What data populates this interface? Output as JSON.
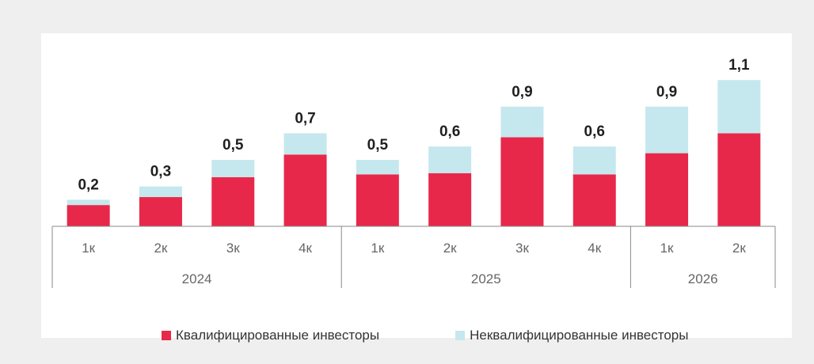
{
  "colors": {
    "qualified": "#e8284a",
    "nonqualified": "#c5e8ee",
    "axis": "#8a8a8a"
  },
  "legend": {
    "qualified_label": "Квалифицированные инвесторы",
    "nonqualified_label": "Неквалифицированные инвесторы"
  },
  "chart_data": {
    "type": "bar",
    "stacked": true,
    "categories": [
      "1к",
      "2к",
      "3к",
      "4к",
      "1к",
      "2к",
      "3к",
      "4к",
      "1к",
      "2к"
    ],
    "groups": [
      {
        "label": "2024",
        "start": 0,
        "count": 4
      },
      {
        "label": "2025",
        "start": 4,
        "count": 4
      },
      {
        "label": "2026",
        "start": 8,
        "count": 2
      }
    ],
    "series": [
      {
        "name": "Квалифицированные инвесторы",
        "values": [
          0.16,
          0.22,
          0.37,
          0.54,
          0.39,
          0.4,
          0.67,
          0.39,
          0.55,
          0.7
        ]
      },
      {
        "name": "Неквалифицированные инвесторы",
        "values": [
          0.04,
          0.08,
          0.13,
          0.16,
          0.11,
          0.2,
          0.23,
          0.21,
          0.35,
          0.4
        ]
      }
    ],
    "totals": [
      "0,2",
      "0,3",
      "0,5",
      "0,7",
      "0,5",
      "0,6",
      "0,9",
      "0,6",
      "0,9",
      "1,1"
    ],
    "ylim": [
      0,
      1.1
    ],
    "grid": false,
    "legend_position": "bottom"
  }
}
